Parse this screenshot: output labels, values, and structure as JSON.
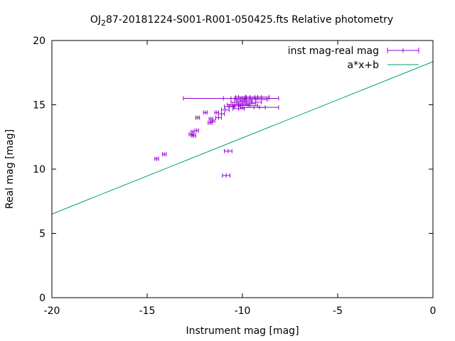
{
  "chart_data": {
    "type": "scatter",
    "title": "OJ 287-20181224-S001-R001-050425.fts Relative photometry",
    "title_parts": {
      "before": "OJ",
      "subscript": "2",
      "after": "87-20181224-S001-R001-050425.fts Relative photometry"
    },
    "xlabel": "Instrument mag [mag]",
    "ylabel": "Real mag [mag]",
    "xlim": [
      -20,
      0
    ],
    "ylim": [
      0,
      20
    ],
    "xticks": [
      -20,
      -15,
      -10,
      -5,
      0
    ],
    "xtick_labels": [
      "-20",
      "-15",
      "-10",
      "-5",
      "0"
    ],
    "yticks": [
      0,
      5,
      10,
      15,
      20
    ],
    "ytick_labels": [
      "0",
      "5",
      "10",
      "15",
      "20"
    ],
    "grid": false,
    "legend_placement": "top-right",
    "series": [
      {
        "name": "inst mag-real mag",
        "kind": "errorbar-x",
        "color": "#9400d3",
        "points": [
          {
            "x": -14.5,
            "y": 10.8,
            "xerr": 0.1
          },
          {
            "x": -14.1,
            "y": 11.15,
            "xerr": 0.1
          },
          {
            "x": -12.7,
            "y": 12.7,
            "xerr": 0.1
          },
          {
            "x": -12.6,
            "y": 12.9,
            "xerr": 0.1
          },
          {
            "x": -12.55,
            "y": 12.6,
            "xerr": 0.1
          },
          {
            "x": -12.4,
            "y": 13.0,
            "xerr": 0.1
          },
          {
            "x": -12.35,
            "y": 14.0,
            "xerr": 0.1
          },
          {
            "x": -11.95,
            "y": 14.4,
            "xerr": 0.1
          },
          {
            "x": -11.7,
            "y": 13.6,
            "xerr": 0.1
          },
          {
            "x": -11.65,
            "y": 13.9,
            "xerr": 0.1
          },
          {
            "x": -11.55,
            "y": 13.75,
            "xerr": 0.1
          },
          {
            "x": -11.35,
            "y": 14.4,
            "xerr": 0.1
          },
          {
            "x": -11.25,
            "y": 14.0,
            "xerr": 0.15
          },
          {
            "x": -11.1,
            "y": 14.3,
            "xerr": 0.15
          },
          {
            "x": -10.9,
            "y": 14.6,
            "xerr": 0.2
          },
          {
            "x": -10.75,
            "y": 11.4,
            "xerr": 0.2
          },
          {
            "x": -10.85,
            "y": 9.5,
            "xerr": 0.2
          },
          {
            "x": -10.7,
            "y": 14.85,
            "xerr": 0.25
          },
          {
            "x": -10.5,
            "y": 15.0,
            "xerr": 0.3
          },
          {
            "x": -10.4,
            "y": 14.9,
            "xerr": 0.3
          },
          {
            "x": -10.3,
            "y": 15.2,
            "xerr": 0.3
          },
          {
            "x": -10.2,
            "y": 14.7,
            "xerr": 0.3
          },
          {
            "x": -10.1,
            "y": 15.4,
            "xerr": 0.3
          },
          {
            "x": -10.0,
            "y": 15.5,
            "xerr": 0.4
          },
          {
            "x": -10.0,
            "y": 15.0,
            "xerr": 0.4
          },
          {
            "x": -9.9,
            "y": 15.3,
            "xerr": 0.4
          },
          {
            "x": -9.85,
            "y": 15.6,
            "xerr": 0.5
          },
          {
            "x": -9.8,
            "y": 15.1,
            "xerr": 0.5
          },
          {
            "x": -9.7,
            "y": 14.95,
            "xerr": 0.5
          },
          {
            "x": -9.6,
            "y": 15.6,
            "xerr": 0.6
          },
          {
            "x": -9.5,
            "y": 15.2,
            "xerr": 0.5
          },
          {
            "x": -9.4,
            "y": 14.8,
            "xerr": 0.6
          },
          {
            "x": -9.3,
            "y": 15.4,
            "xerr": 0.6
          },
          {
            "x": -9.2,
            "y": 15.6,
            "xerr": 0.6
          },
          {
            "x": -9.1,
            "y": 14.8,
            "xerr": 1.0
          },
          {
            "x": -10.6,
            "y": 15.5,
            "xerr": 2.5
          },
          {
            "x": -9.8,
            "y": 15.5,
            "xerr": 1.2
          }
        ]
      },
      {
        "name": "a*x+b",
        "kind": "line",
        "color": "#009e73",
        "slope": 0.5925,
        "intercept": 18.35
      }
    ]
  }
}
